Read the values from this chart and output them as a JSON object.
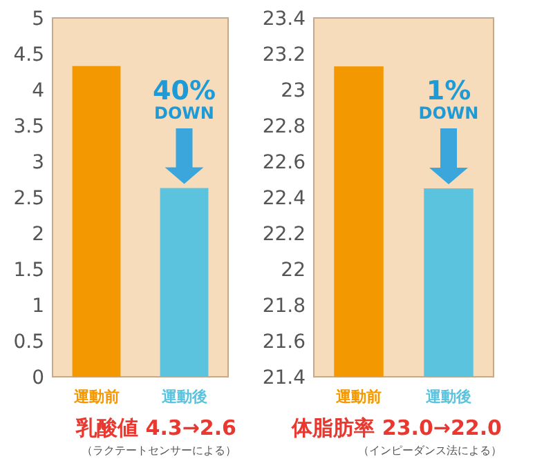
{
  "chart_data": [
    {
      "type": "bar",
      "categories": [
        "運動前",
        "運動後"
      ],
      "colors": [
        "#f39800",
        "#5bc3dd"
      ],
      "values": [
        4.33,
        2.63
      ],
      "ylim": [
        0,
        5
      ],
      "yticks": [
        0,
        0.5,
        1,
        1.5,
        2,
        2.5,
        3,
        3.5,
        4,
        4.5,
        5
      ],
      "annotations": [
        "40%",
        "DOWN",
        "乳酸値 4.3→2.6",
        "（ラクテートセンサーによる）"
      ]
    },
    {
      "type": "bar",
      "categories": [
        "運動前",
        "運動後"
      ],
      "colors": [
        "#f39800",
        "#5bc3dd"
      ],
      "values": [
        23.13,
        22.45
      ],
      "ylim": [
        21.4,
        23.4
      ],
      "yticks": [
        21.4,
        21.6,
        21.8,
        22,
        22.2,
        22.4,
        22.6,
        22.8,
        23,
        23.2,
        23.4
      ],
      "annotations": [
        "1%",
        "DOWN",
        "体脂肪率 23.0→22.0",
        "（インピーダンス法による）"
      ]
    }
  ]
}
